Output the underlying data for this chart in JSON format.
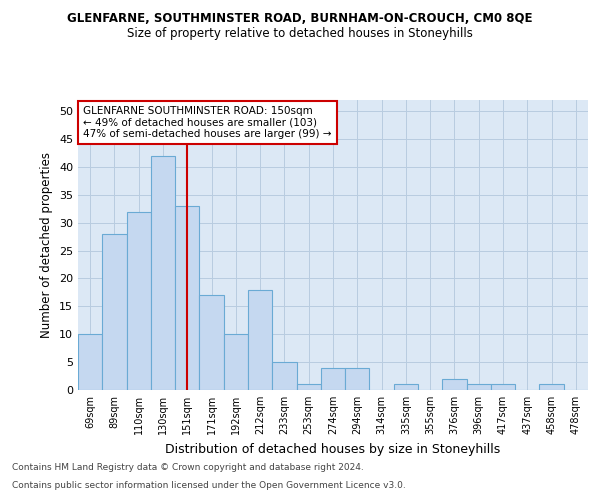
{
  "title1": "GLENFARNE, SOUTHMINSTER ROAD, BURNHAM-ON-CROUCH, CM0 8QE",
  "title2": "Size of property relative to detached houses in Stoneyhills",
  "xlabel": "Distribution of detached houses by size in Stoneyhills",
  "ylabel": "Number of detached properties",
  "categories": [
    "69sqm",
    "89sqm",
    "110sqm",
    "130sqm",
    "151sqm",
    "171sqm",
    "192sqm",
    "212sqm",
    "233sqm",
    "253sqm",
    "274sqm",
    "294sqm",
    "314sqm",
    "335sqm",
    "355sqm",
    "376sqm",
    "396sqm",
    "417sqm",
    "437sqm",
    "458sqm",
    "478sqm"
  ],
  "values": [
    10,
    28,
    32,
    42,
    33,
    17,
    10,
    18,
    5,
    1,
    4,
    4,
    0,
    1,
    0,
    2,
    1,
    1,
    0,
    1,
    0
  ],
  "bar_color": "#c5d8f0",
  "bar_edge_color": "#6aaad4",
  "vline_x": 4,
  "vline_color": "#cc0000",
  "ylim": [
    0,
    52
  ],
  "yticks": [
    0,
    5,
    10,
    15,
    20,
    25,
    30,
    35,
    40,
    45,
    50
  ],
  "annotation_title": "GLENFARNE SOUTHMINSTER ROAD: 150sqm",
  "annotation_line1": "← 49% of detached houses are smaller (103)",
  "annotation_line2": "47% of semi-detached houses are larger (99) →",
  "annotation_box_color": "#ffffff",
  "annotation_box_edge": "#cc0000",
  "bg_color": "#dce8f5",
  "footnote1": "Contains HM Land Registry data © Crown copyright and database right 2024.",
  "footnote2": "Contains public sector information licensed under the Open Government Licence v3.0."
}
